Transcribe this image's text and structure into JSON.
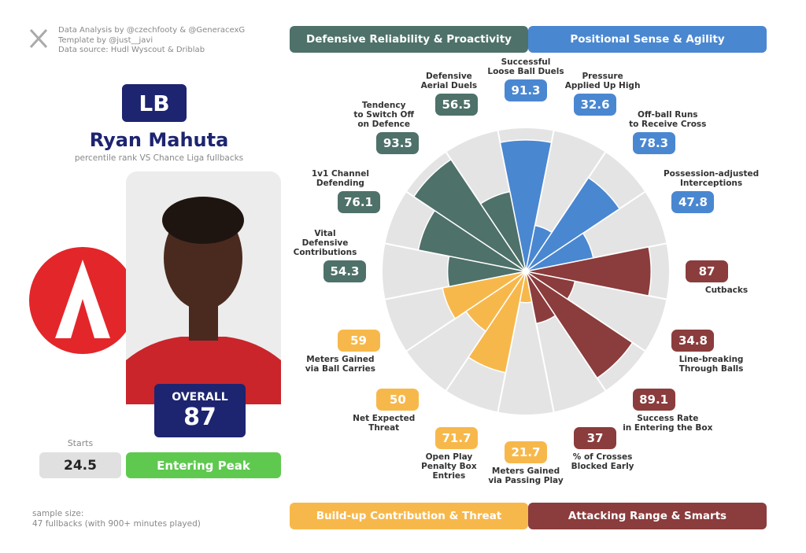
{
  "credits": [
    "Data Analysis by @czechfooty & @GeneracexG",
    "Template by @just__javi",
    "Data source: Hudl Wyscout & Driblab"
  ],
  "player": {
    "position": "LB",
    "name": "Ryan Mahuta",
    "subtitle": "percentile rank VS Chance Liga fullbacks",
    "overall_label": "OVERALL",
    "overall": 87,
    "starts_label": "Starts",
    "starts": 24.5,
    "status": "Entering Peak"
  },
  "sample": [
    "sample size:",
    "47 fullbacks (with 900+ minutes played)"
  ],
  "chart_data": {
    "type": "pizza",
    "ylim": [
      0,
      100
    ],
    "series": [
      {
        "name": "Positional Sense & Agility",
        "color": "#4a87d1",
        "categories": [
          "Successful\nLoose Ball Duels",
          "Pressure\nApplied Up High",
          "Off-ball Runs\nto Receive Cross",
          "Possession-adjusted\nInterceptions"
        ],
        "values": [
          91.3,
          32.6,
          78.3,
          47.8
        ]
      },
      {
        "name": "Attacking Range & Smarts",
        "color": "#8b3c3c",
        "categories": [
          "Cutbacks",
          "Line-breaking\nThrough Balls",
          "Success Rate\nin Entering the Box",
          "% of Crosses\nBlocked Early"
        ],
        "values": [
          87,
          34.8,
          89.1,
          37
        ]
      },
      {
        "name": "Build-up Contribution & Threat",
        "color": "#f7b84b",
        "categories": [
          "Meters Gained\nvia Passing Play",
          "Open Play\nPenalty Box\nEntries",
          "Net Expected\nThreat",
          "Meters Gained\nvia Ball Carries"
        ],
        "values": [
          21.7,
          71.7,
          50,
          59
        ]
      },
      {
        "name": "Defensive Reliability & Proactivity",
        "color": "#4e7169",
        "categories": [
          "Vital\nDefensive\nContributions",
          "1v1 Channel\nDefending",
          "Tendency\nto Switch Off\non Defence",
          "Defensive\nAerial Duels"
        ],
        "values": [
          54.3,
          76.1,
          93.5,
          56.5
        ]
      }
    ]
  }
}
